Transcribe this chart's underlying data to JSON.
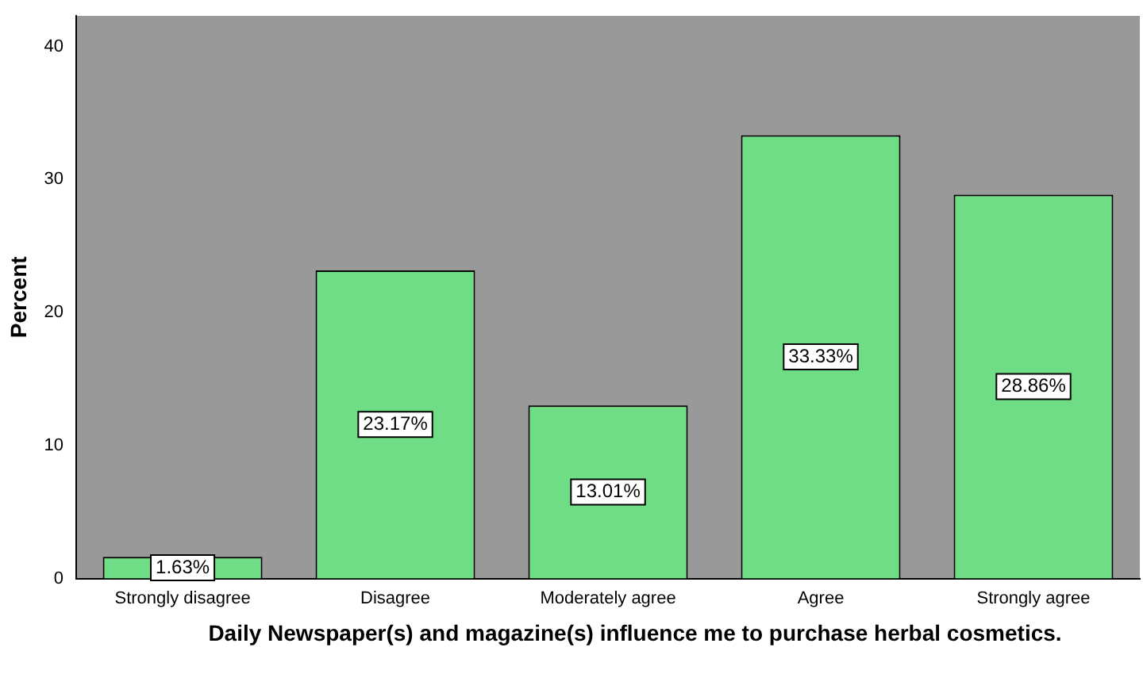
{
  "chart_data": {
    "type": "bar",
    "xlabel": "Daily Newspaper(s) and magazine(s) influence me to purchase herbal cosmetics.",
    "ylabel": "Percent",
    "categories": [
      "Strongly disagree",
      "Disagree",
      "Moderately agree",
      "Agree",
      "Strongly agree"
    ],
    "values": [
      1.63,
      23.17,
      13.01,
      33.33,
      28.86
    ],
    "value_labels": [
      "1.63%",
      "23.17%",
      "13.01%",
      "33.33%",
      "28.86%"
    ],
    "color": "#6fdd85",
    "ylim": [
      0,
      42.3
    ],
    "yticks": [
      0,
      10,
      20,
      30,
      40
    ],
    "grid": false,
    "legend": false
  }
}
